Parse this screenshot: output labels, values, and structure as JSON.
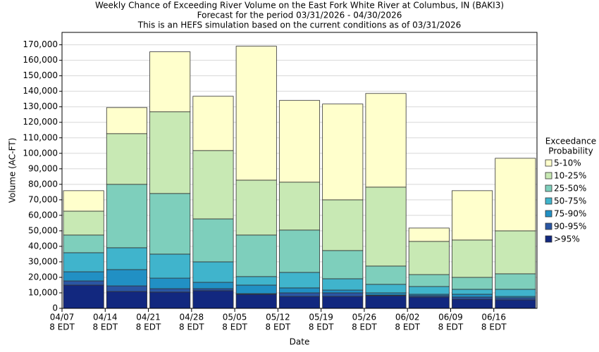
{
  "chart_data": {
    "type": "stacked_bar",
    "title": "Weekly Chance of Exceeding River Volume on the East Fork White River at Columbus, IN (BAKI3)",
    "subtitle": [
      "Forecast for the period 03/31/2026 - 04/30/2026",
      "This is an HEFS simulation based on the current conditions as of 03/31/2026"
    ],
    "x_label": "Date",
    "y_label": "Volume (AC-FT)",
    "legend_title": [
      "Exceedance",
      "Probability"
    ],
    "legend": "right",
    "grid": true,
    "categories": [
      [
        "04/07",
        "8 EDT"
      ],
      [
        "04/14",
        "8 EDT"
      ],
      [
        "04/21",
        "8 EDT"
      ],
      [
        "04/28",
        "8 EDT"
      ],
      [
        "05/05",
        "8 EDT"
      ],
      [
        "05/12",
        "8 EDT"
      ],
      [
        "05/19",
        "8 EDT"
      ],
      [
        "05/26",
        "8 EDT"
      ],
      [
        "06/02",
        "8 EDT"
      ],
      [
        "06/09",
        "8 EDT"
      ],
      [
        "06/16",
        "8 EDT"
      ]
    ],
    "ylim": [
      0,
      178000
    ],
    "yticks": [
      0,
      {
        "value": 10000,
        "label": "10,000"
      },
      {
        "value": 20000,
        "label": "20,000"
      },
      {
        "value": 30000,
        "label": "30,000"
      },
      {
        "value": 40000,
        "label": "40,000"
      },
      {
        "value": 50000,
        "label": "50,000"
      },
      {
        "value": 60000,
        "label": "60,000"
      },
      {
        "value": 70000,
        "label": "70,000"
      },
      {
        "value": 80000,
        "label": "80,000"
      },
      {
        "value": 90000,
        "label": "90,000"
      },
      {
        "value": 100000,
        "label": "100,000"
      },
      {
        "value": 110000,
        "label": "110,000"
      },
      {
        "value": 120000,
        "label": "120,000"
      },
      {
        "value": 130000,
        "label": "130,000"
      },
      {
        "value": 140000,
        "label": "140,000"
      },
      {
        "value": 150000,
        "label": "150,000"
      },
      {
        "value": 160000,
        "label": "160,000"
      },
      {
        "value": 170000,
        "label": "170,000"
      }
    ],
    "series": [
      {
        "name": ">95%",
        "color": "#12287f",
        "values": [
          15000,
          10900,
          10500,
          11400,
          9100,
          7700,
          7700,
          8200,
          7300,
          5900,
          5500
        ]
      },
      {
        "name": "90-95%",
        "color": "#2a56a3",
        "values": [
          2700,
          3600,
          2200,
          1300,
          400,
          2300,
          2300,
          400,
          900,
          1400,
          1300
        ]
      },
      {
        "name": "75-90%",
        "color": "#2190c4",
        "values": [
          5900,
          10500,
          6800,
          4100,
          5500,
          3200,
          1800,
          1400,
          900,
          1800,
          900
        ]
      },
      {
        "name": "50-75%",
        "color": "#40b4cc",
        "values": [
          12300,
          14100,
          15500,
          13200,
          5500,
          10000,
          7300,
          5500,
          5000,
          3200,
          4600
        ]
      },
      {
        "name": "25-50%",
        "color": "#7ecfbc",
        "values": [
          11400,
          40900,
          39100,
          27700,
          26800,
          27300,
          18200,
          11800,
          7700,
          7700,
          10000
        ]
      },
      {
        "name": "10-25%",
        "color": "#c8e9b4",
        "values": [
          15400,
          32700,
          52700,
          44100,
          35400,
          30900,
          32700,
          50900,
          21400,
          24100,
          27700
        ]
      },
      {
        "name": "5-10%",
        "color": "#ffffcc",
        "values": [
          13200,
          16800,
          38700,
          35000,
          86400,
          52700,
          61800,
          60400,
          8600,
          31800,
          46800
        ]
      }
    ]
  }
}
